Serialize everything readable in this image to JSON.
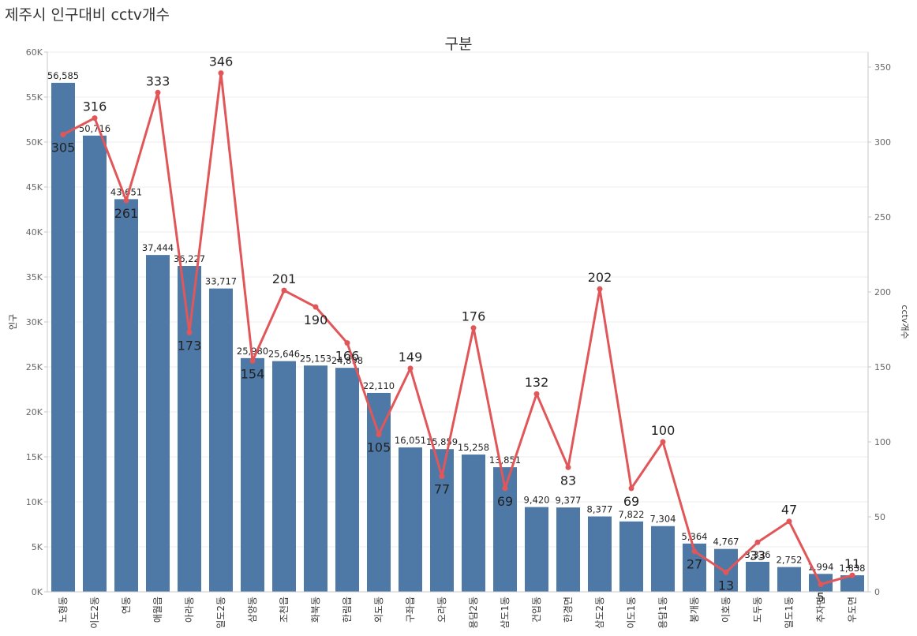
{
  "page": {
    "title": "제주시 인구대비 cctv개수"
  },
  "chart_data": {
    "type": "bar+line",
    "title": "구분",
    "categories": [
      "노형동",
      "이도2동",
      "연동",
      "애월읍",
      "아라동",
      "일도2동",
      "삼양동",
      "조천읍",
      "화북동",
      "한림읍",
      "외도동",
      "구좌읍",
      "오라동",
      "용담2동",
      "삼도1동",
      "건입동",
      "한경면",
      "삼도2동",
      "이도1동",
      "용담1동",
      "봉개동",
      "이호동",
      "도두동",
      "일도1동",
      "추자면",
      "우도면"
    ],
    "series": [
      {
        "name": "인구",
        "axis": "left",
        "type": "bar",
        "color": "#4e79a7",
        "values": [
          56585,
          50716,
          43651,
          37444,
          36227,
          33717,
          25980,
          25646,
          25153,
          24898,
          22110,
          16051,
          15859,
          15258,
          13851,
          9420,
          9377,
          8377,
          7822,
          7304,
          5364,
          4767,
          3336,
          2752,
          1994,
          1838
        ],
        "labels": [
          "56,585",
          "50,716",
          "43,651",
          "37,444",
          "36,227",
          "33,717",
          "25,980",
          "25,646",
          "25,153",
          "24,898",
          "22,110",
          "16,051",
          "15,859",
          "15,258",
          "13,851",
          "9,420",
          "9,377",
          "8,377",
          "7,822",
          "7,304",
          "5,364",
          "4,767",
          "3,336",
          "2,752",
          "1,994",
          "1,838"
        ]
      },
      {
        "name": "cctv개수",
        "axis": "right",
        "type": "line",
        "color": "#e15759",
        "values": [
          305,
          316,
          261,
          333,
          173,
          346,
          154,
          201,
          190,
          166,
          105,
          149,
          77,
          176,
          69,
          132,
          83,
          202,
          69,
          100,
          27,
          13,
          33,
          47,
          5,
          11
        ],
        "labels": [
          "305",
          "316",
          "261",
          "333",
          "173",
          "346",
          "154",
          "201",
          "190",
          "166",
          "105",
          "149",
          "77",
          "176",
          "69",
          "132",
          "83",
          "202",
          "69",
          "100",
          "27",
          "13",
          "33",
          "47",
          "5",
          "11"
        ]
      }
    ],
    "y_left": {
      "label": "인구",
      "range": [
        0,
        60000
      ],
      "ticks": [
        0,
        5000,
        10000,
        15000,
        20000,
        25000,
        30000,
        35000,
        40000,
        45000,
        50000,
        55000,
        60000
      ],
      "tick_labels": [
        "0K",
        "5K",
        "10K",
        "15K",
        "20K",
        "25K",
        "30K",
        "35K",
        "40K",
        "45K",
        "50K",
        "55K",
        "60K"
      ]
    },
    "y_right": {
      "label": "cctv개수",
      "range": [
        0,
        360
      ],
      "ticks": [
        0,
        50,
        100,
        150,
        200,
        250,
        300,
        350
      ],
      "tick_labels": [
        "0",
        "50",
        "100",
        "150",
        "200",
        "250",
        "300",
        "350"
      ]
    },
    "grid": true
  }
}
